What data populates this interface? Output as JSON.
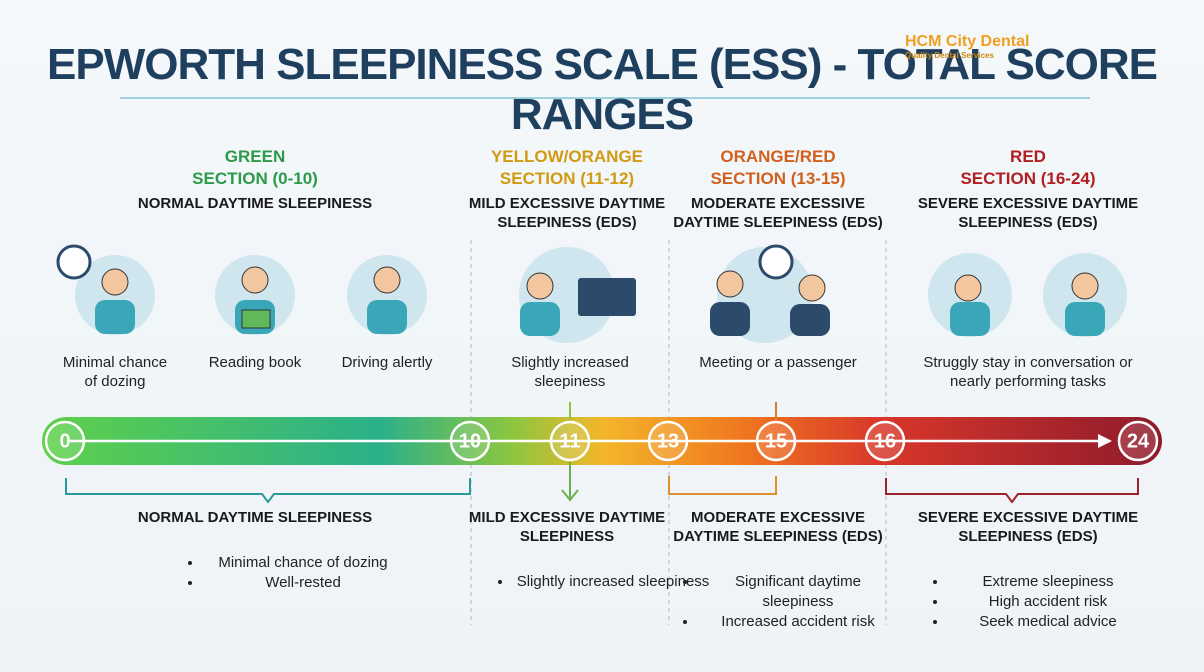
{
  "header": {
    "title": "EPWORTH SLEEPINESS SCALE (ESS) - TOTAL SCORE RANGES",
    "logo": {
      "name": "HCM City Dental",
      "tagline": "Quality Dental Services"
    }
  },
  "sections": [
    {
      "color_name": "GREEN",
      "range": "SECTION (0-10)",
      "label": "NORMAL DAYTIME SLEEPINESS",
      "captions": [
        "Minimal chance of dozing",
        "Reading book",
        "Driving alertly"
      ],
      "summary": "NORMAL DAYTIME SLEEPINESS",
      "bullets": [
        "Minimal chance of dozing",
        "Well-rested"
      ]
    },
    {
      "color_name": "YELLOW/ORANGE",
      "range": "SECTION (11-12)",
      "label": "MILD EXCESSIVE DAYTIME SLEEPINESS (EDS)",
      "captions": [
        "Slightly increased sleepiness"
      ],
      "summary": "MILD EXCESSIVE DAYTIME SLEEPINESS",
      "bullets": [
        "Slightly increased sleepiness"
      ]
    },
    {
      "color_name": "ORANGE/RED",
      "range": "SECTION (13-15)",
      "label": "MODERATE EXCESSIVE DAYTIME SLEEPINESS (EDS)",
      "captions": [
        "Meeting or a passenger"
      ],
      "summary": "MODERATE EXCESSIVE DAYTIME SLEEPINESS (EDS)",
      "bullets": [
        "Significant daytime sleepiness",
        "Increased accident risk"
      ]
    },
    {
      "color_name": "RED",
      "range": "SECTION (16-24)",
      "label": "SEVERE EXCESSIVE DAYTIME SLEEPINESS (EDS)",
      "captions": [
        "Struggly stay in conversation or nearly performing tasks"
      ],
      "summary": "SEVERE EXCESSIVE DAYTIME SLEEPINESS (EDS)",
      "bullets": [
        "Extreme sleepiness",
        "High accident risk",
        "Seek medical advice"
      ]
    }
  ],
  "scale": {
    "markers": [
      0,
      10,
      11,
      13,
      15,
      16,
      24
    ]
  }
}
